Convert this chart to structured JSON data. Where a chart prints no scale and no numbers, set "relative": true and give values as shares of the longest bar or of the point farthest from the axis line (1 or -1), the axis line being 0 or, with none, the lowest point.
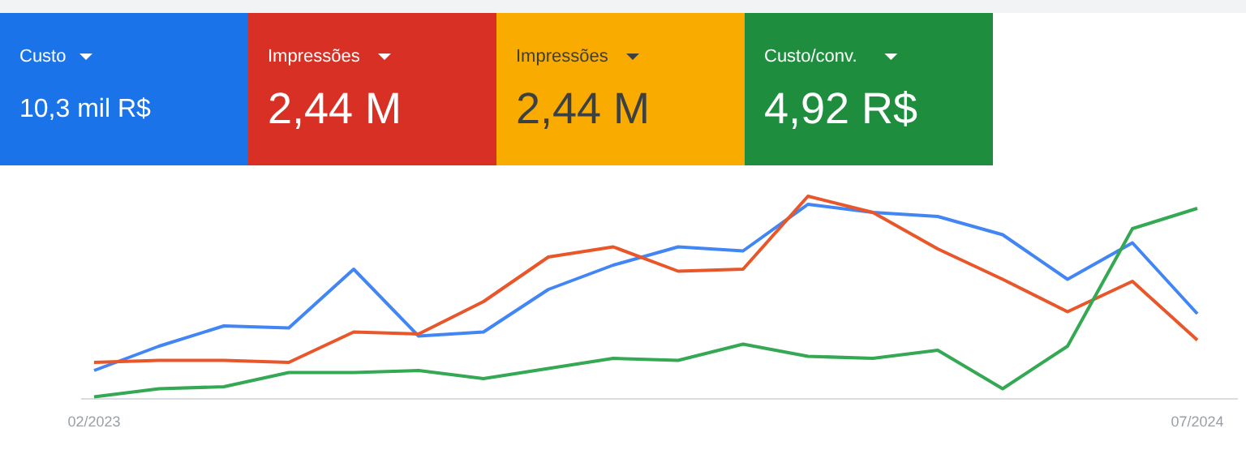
{
  "chart_data": [
    {
      "type": "other",
      "annotations": [
        "Custo",
        "10,3 mil R$",
        "Impressões",
        "2,44 M",
        "Impressões",
        "2,44 M",
        "Custo/conv.",
        "4,92 R$"
      ],
      "colors": [
        "#1a73e8",
        "#d93025",
        "#f9ab00",
        "#1e8e3e"
      ]
    },
    {
      "type": "line",
      "relative": true,
      "categories": [
        "02/2023",
        null,
        null,
        null,
        null,
        null,
        null,
        null,
        null,
        null,
        null,
        null,
        null,
        null,
        null,
        null,
        null,
        "07/2024"
      ],
      "series": [
        {
          "color": "#4285f4",
          "values": [
            0.14,
            0.26,
            0.36,
            0.35,
            0.64,
            0.31,
            0.33,
            0.54,
            0.66,
            0.75,
            0.73,
            0.96,
            0.92,
            0.9,
            0.81,
            0.59,
            0.77,
            0.42
          ]
        },
        {
          "color": "#e8562a",
          "values": [
            0.18,
            0.19,
            0.19,
            0.18,
            0.33,
            0.32,
            0.48,
            0.7,
            0.75,
            0.63,
            0.64,
            1.0,
            0.92,
            0.74,
            0.59,
            0.43,
            0.58,
            0.29
          ]
        },
        {
          "color": "#34a853",
          "values": [
            0.01,
            0.05,
            0.06,
            0.13,
            0.13,
            0.14,
            0.1,
            0.15,
            0.2,
            0.19,
            0.27,
            0.21,
            0.2,
            0.24,
            0.05,
            0.26,
            0.84,
            0.94
          ]
        }
      ]
    }
  ]
}
